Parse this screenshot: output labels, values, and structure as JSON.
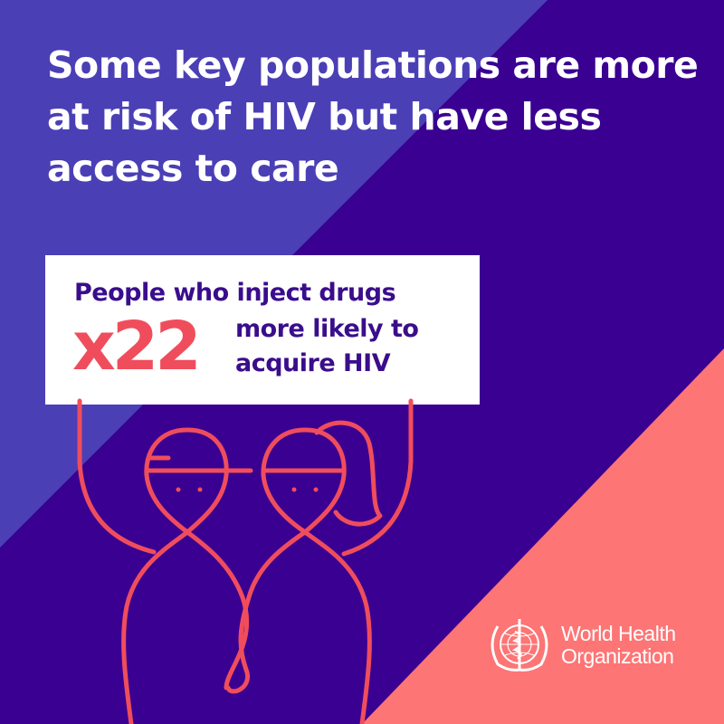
{
  "headline": "Some key populations are more at risk of HIV but have less access to care",
  "card": {
    "line1": "People who inject drugs",
    "multiplier": "x22",
    "line2": "more likely to",
    "line3": "acquire HIV"
  },
  "logo": {
    "line1": "World Health",
    "line2": "Organization",
    "icon": "who-emblem-icon"
  },
  "colors": {
    "light_purple": "#4b3fb6",
    "dark_purple": "#3a0091",
    "salmon": "#fd7575",
    "accent_red": "#f04d5c",
    "text_purple": "#3a0d8c"
  }
}
